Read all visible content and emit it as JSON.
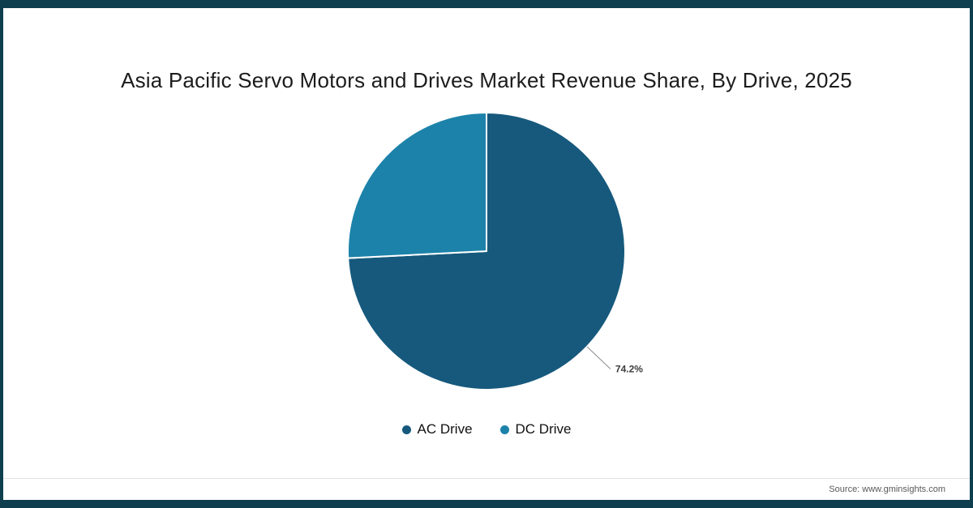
{
  "frame": {
    "accent_color": "#0f3f4e"
  },
  "header": {
    "title": "Asia Pacific Servo Motors and Drives Market Revenue Share, By Drive, 2025"
  },
  "footer": {
    "source": "Source: www.gminsights.com"
  },
  "chart_data": {
    "type": "pie",
    "title": "Asia Pacific Servo Motors and Drives Market Revenue Share, By Drive, 2025",
    "labels": [
      "AC Drive",
      "DC Drive"
    ],
    "values": [
      74.2,
      25.8
    ],
    "colors": [
      "#16597d",
      "#1c82a9"
    ],
    "data_labels": [
      "74.2%",
      null
    ],
    "data_label_color": "#3d3d3d",
    "leader_line_color": "#8c8c8c",
    "slice_border_color": "#ffffff",
    "start_angle_deg": -90,
    "direction": "clockwise",
    "legend_position": "bottom"
  }
}
